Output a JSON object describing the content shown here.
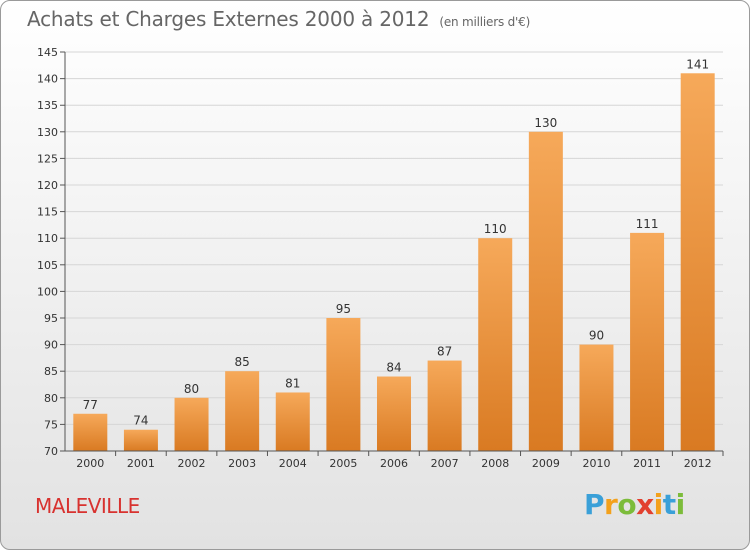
{
  "title": "Achats et Charges Externes 2000 à 2012",
  "unit": "(en milliers d'€)",
  "commune": "MALEVILLE",
  "logo": {
    "letters": [
      "P",
      "r",
      "o",
      "x",
      "i",
      "t",
      "i"
    ],
    "colors": [
      "#3aa0d8",
      "#f3a11c",
      "#7cbc3a",
      "#e2402f",
      "#f3a11c",
      "#3aa0d8",
      "#7cbc3a"
    ]
  },
  "colors": {
    "bar_light": "#f6a95a",
    "bar_dark": "#d97a22",
    "grid": "#d6d6d6",
    "axis_text": "#333333"
  },
  "chart_data": {
    "type": "bar",
    "title": "Achats et Charges Externes 2000 à 2012",
    "subtitle": "(en milliers d'€)",
    "categories": [
      "2000",
      "2001",
      "2002",
      "2003",
      "2004",
      "2005",
      "2006",
      "2007",
      "2008",
      "2009",
      "2010",
      "2011",
      "2012"
    ],
    "values": [
      77,
      74,
      80,
      85,
      81,
      95,
      84,
      87,
      110,
      130,
      90,
      111,
      141
    ],
    "ylim": [
      70,
      145
    ],
    "yticks": [
      70,
      75,
      80,
      85,
      90,
      95,
      100,
      105,
      110,
      115,
      120,
      125,
      130,
      135,
      140,
      145
    ],
    "grid": "horizontal",
    "legend": "none"
  }
}
